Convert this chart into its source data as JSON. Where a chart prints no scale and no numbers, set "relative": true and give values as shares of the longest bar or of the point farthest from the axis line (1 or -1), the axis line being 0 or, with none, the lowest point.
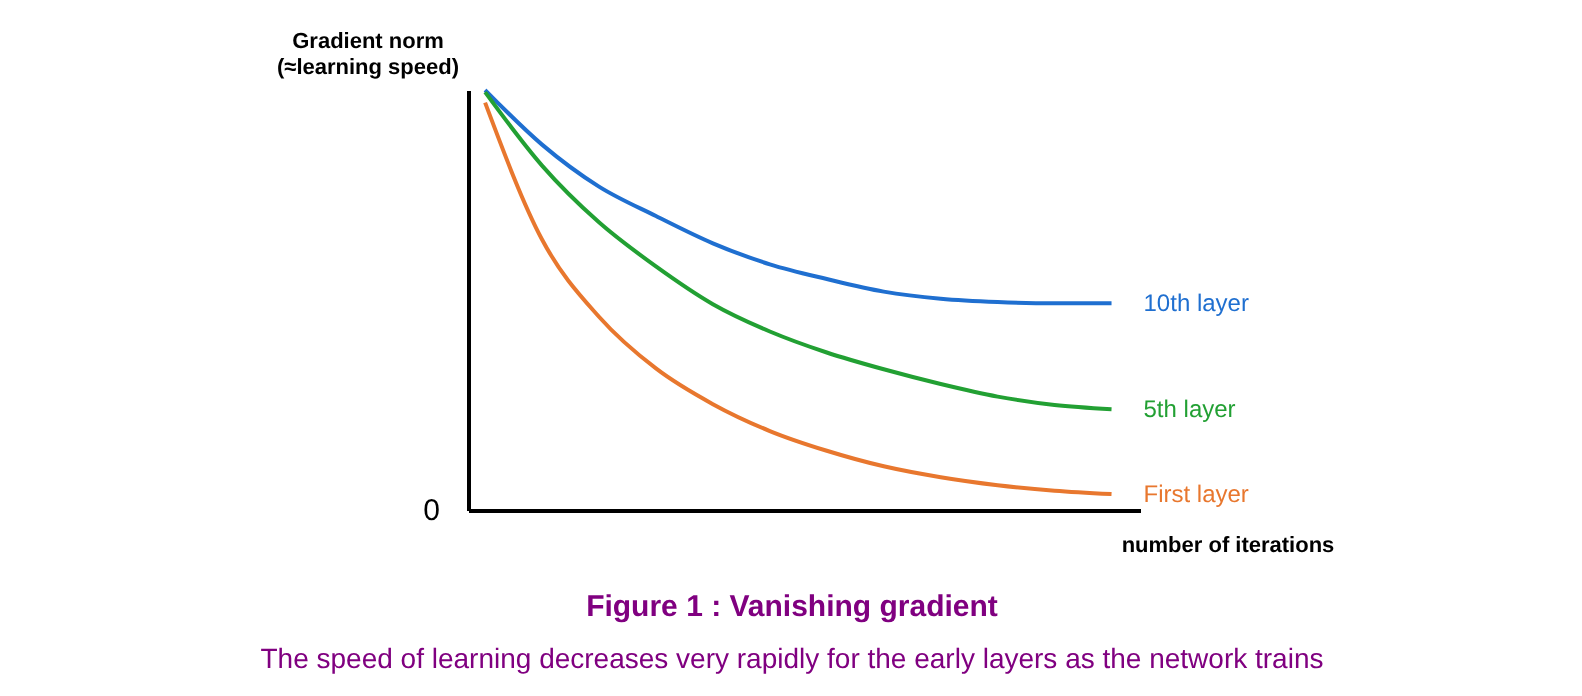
{
  "chart_data": {
    "type": "line",
    "relative": true,
    "title": "Figure 1 : Vanishing gradient",
    "subtitle": "The speed of learning decreases very rapidly for the early layers as the network trains",
    "ylabel": "Gradient norm\n(≈learning speed)",
    "xlabel": "number of iterations",
    "annotations": [
      "0"
    ],
    "categories": [
      null,
      null,
      null,
      null,
      null,
      null,
      null,
      null,
      null,
      null,
      null,
      null
    ],
    "series": [
      {
        "name": "10th layer",
        "color": "#1f6fd0",
        "values": [
          1.0,
          0.87,
          0.77,
          0.7,
          0.635,
          0.585,
          0.55,
          0.52,
          0.503,
          0.495,
          0.492,
          0.492
        ]
      },
      {
        "name": "5th layer",
        "color": "#22a033",
        "values": [
          0.995,
          0.82,
          0.685,
          0.58,
          0.49,
          0.425,
          0.375,
          0.335,
          0.3,
          0.27,
          0.25,
          0.24
        ]
      },
      {
        "name": "First layer",
        "color": "#e8772e",
        "values": [
          0.97,
          0.644,
          0.46,
          0.337,
          0.252,
          0.188,
          0.141,
          0.104,
          0.078,
          0.059,
          0.046,
          0.038
        ]
      }
    ],
    "legend": false,
    "grid": false,
    "marker": "none",
    "line_style": "solid"
  }
}
